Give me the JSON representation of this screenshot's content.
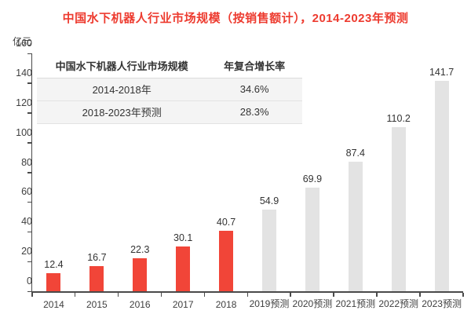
{
  "chart": {
    "title": "中国水下机器人行业市场规模（按销售额计），2014-2023年预测",
    "title_color": "#ed3b2f",
    "unit": "亿元"
  },
  "table": {
    "headers": [
      "中国水下机器人行业市场规模",
      "年复合增长率"
    ],
    "rows": [
      {
        "period": "2014-2018年",
        "cagr": "34.6%"
      },
      {
        "period": "2018-2023年预测",
        "cagr": "28.3%"
      }
    ]
  },
  "chart_data": {
    "type": "bar",
    "title": "中国水下机器人行业市场规模（按销售额计），2014-2023年预测",
    "categories": [
      "2014",
      "2015",
      "2016",
      "2017",
      "2018",
      "2019预测",
      "2020预测",
      "2021预测",
      "2022预测",
      "2023预测"
    ],
    "values": [
      12.4,
      16.7,
      22.3,
      30.1,
      40.7,
      54.9,
      69.9,
      87.4,
      110.2,
      141.7
    ],
    "ylabel": "亿元",
    "xlabel": "",
    "ylim": [
      0,
      160
    ],
    "ytick_step": 20,
    "grid": false,
    "legend": "none",
    "forecast_start_index": 5,
    "actual_color": "#f14538",
    "forecast_color": "#e3e3e3",
    "annotations": {
      "cagr_2014_2018": "34.6%",
      "cagr_2018_2023": "28.3%"
    }
  }
}
